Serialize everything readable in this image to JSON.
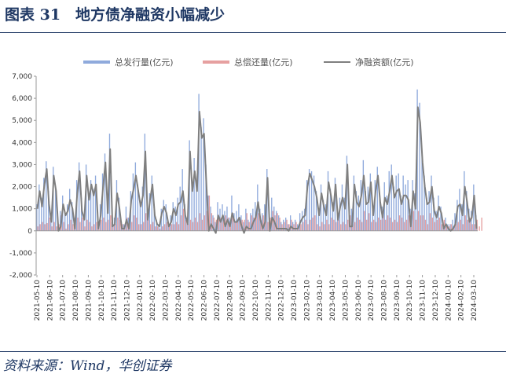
{
  "header": {
    "title": "图表 31　地方债净融资小幅减少"
  },
  "footer": {
    "source": "资料来源：Wind，华创证券"
  },
  "colors": {
    "issuance": "#8faadc",
    "repayment": "#e6a0a0",
    "net": "#7f7f7f",
    "title": "#1f3864"
  },
  "chart_data": {
    "type": "bar",
    "title": "",
    "xlabel": "",
    "ylabel": "",
    "ylim": [
      -2000,
      7000
    ],
    "yticks": [
      "7,000",
      "6,000",
      "5,000",
      "4,000",
      "3,000",
      "2,000",
      "1,000",
      "0",
      "-1,000",
      "-2,000"
    ],
    "ytick_values": [
      7000,
      6000,
      5000,
      4000,
      3000,
      2000,
      1000,
      0,
      -1000,
      -2000
    ],
    "xticks": [
      "2021-05-10",
      "2021-06-10",
      "2021-07-10",
      "2021-08-10",
      "2021-09-10",
      "2021-10-10",
      "2021-11-10",
      "2021-12-10",
      "2022-01-10",
      "2022-02-10",
      "2022-03-10",
      "2022-04-10",
      "2022-05-10",
      "2022-06-10",
      "2022-07-10",
      "2022-08-10",
      "2022-09-10",
      "2022-10-10",
      "2022-11-10",
      "2022-12-10",
      "2023-01-10",
      "2023-02-10",
      "2023-03-10",
      "2023-04-10",
      "2023-05-10",
      "2023-06-10",
      "2023-07-10",
      "2023-08-10",
      "2023-09-10",
      "2023-10-10",
      "2023-11-10",
      "2023-12-10",
      "2024-01-10",
      "2024-02-10",
      "2024-03-10"
    ],
    "legend_position": "top",
    "grid": false,
    "series": [
      {
        "name": "总发行量(亿元)",
        "kind": "bar",
        "values": [
          1200,
          2100,
          1500,
          2400,
          3150,
          1800,
          600,
          2900,
          2000,
          300,
          900,
          1600,
          800,
          1200,
          1900,
          1300,
          600,
          2300,
          3100,
          1500,
          700,
          3000,
          1800,
          2300,
          1900,
          2500,
          300,
          1200,
          2600,
          3500,
          1300,
          4400,
          400,
          600,
          2300,
          1500,
          400,
          300,
          1100,
          600,
          1800,
          2600,
          3100,
          2100,
          1400,
          2000,
          4400,
          1000,
          1700,
          2500,
          900,
          500,
          300,
          1000,
          1400,
          1200,
          400,
          700,
          1300,
          1100,
          1500,
          2000,
          2800,
          1200,
          600,
          4100,
          2200,
          3300,
          2200,
          6200,
          4700,
          5100,
          3000,
          1600,
          1100,
          700,
          400,
          1300,
          1000,
          1200,
          900,
          1100,
          600,
          1600,
          800,
          900,
          1200,
          700,
          400,
          1000,
          500,
          800,
          1000,
          1300,
          2100,
          1000,
          800,
          1200,
          2800,
          600,
          1500,
          1100,
          900,
          700,
          400,
          500,
          600,
          300,
          700,
          400,
          500,
          300,
          800,
          900,
          1000,
          2300,
          2800,
          2700,
          2500,
          1800,
          900,
          2100,
          1400,
          1200,
          2700,
          1900,
          1300,
          2400,
          1000,
          1500,
          2100,
          1500,
          3400,
          1100,
          1000,
          2500,
          1800,
          1600,
          2300,
          3200,
          1800,
          2000,
          2600,
          1200,
          2300,
          2900,
          1700,
          1100,
          2200,
          1600,
          2700,
          3000,
          2000,
          2500,
          2600,
          1600,
          2500,
          2100,
          2300,
          1000,
          2300,
          1700,
          6400,
          5800,
          3500,
          2500,
          1500,
          1800,
          2500,
          1500,
          900,
          1600,
          1100,
          300,
          600,
          300,
          300,
          500,
          800,
          1400,
          1900,
          1200,
          2700,
          1800,
          1000,
          900,
          2100,
          700
        ]
      },
      {
        "name": "总偿还量(亿元)",
        "kind": "bar",
        "values": [
          200,
          300,
          400,
          300,
          350,
          600,
          200,
          400,
          200,
          300,
          700,
          400,
          100,
          300,
          500,
          300,
          500,
          600,
          400,
          600,
          200,
          500,
          400,
          200,
          300,
          400,
          200,
          500,
          600,
          400,
          500,
          700,
          200,
          300,
          600,
          500,
          300,
          200,
          600,
          500,
          400,
          700,
          600,
          300,
          300,
          400,
          800,
          500,
          300,
          400,
          200,
          200,
          100,
          200,
          300,
          400,
          200,
          300,
          300,
          400,
          300,
          700,
          1000,
          500,
          300,
          500,
          400,
          600,
          400,
          800,
          500,
          700,
          900,
          1600,
          800,
          600,
          500,
          600,
          600,
          500,
          700,
          600,
          400,
          800,
          400,
          500,
          600,
          500,
          500,
          800,
          400,
          700,
          600,
          700,
          800,
          500,
          700,
          800,
          400,
          600,
          900,
          700,
          800,
          600,
          300,
          400,
          500,
          300,
          500,
          300,
          400,
          200,
          300,
          400,
          500,
          300,
          500,
          600,
          700,
          300,
          200,
          400,
          300,
          500,
          300,
          600,
          500,
          400,
          500,
          300,
          400,
          300,
          500,
          700,
          300,
          400,
          600,
          500,
          400,
          900,
          500,
          800,
          400,
          500,
          400,
          600,
          500,
          700,
          500,
          700,
          600,
          400,
          500,
          400,
          700,
          600,
          400,
          500,
          700,
          400,
          900,
          500,
          900,
          700,
          700,
          500,
          300,
          800,
          600,
          400,
          500,
          600,
          300,
          500,
          300,
          200,
          300,
          200,
          300,
          400,
          500,
          300,
          700,
          500,
          600,
          300,
          300,
          500,
          200,
          600
        ]
      },
      {
        "name": "净融资额(亿元)",
        "kind": "line",
        "values": [
          1000,
          1800,
          1100,
          2100,
          2800,
          1200,
          400,
          2500,
          1800,
          0,
          200,
          1200,
          700,
          900,
          1400,
          1000,
          100,
          1700,
          2700,
          900,
          500,
          2500,
          1400,
          2100,
          1600,
          2100,
          100,
          700,
          2000,
          3100,
          800,
          3700,
          200,
          300,
          1700,
          1000,
          100,
          100,
          500,
          100,
          1400,
          1900,
          2500,
          1800,
          1100,
          1600,
          3600,
          500,
          1400,
          2100,
          700,
          300,
          200,
          800,
          1100,
          800,
          200,
          400,
          1000,
          700,
          1200,
          1300,
          1800,
          700,
          300,
          3600,
          1800,
          2700,
          1800,
          5400,
          4200,
          4400,
          2100,
          0,
          300,
          100,
          -100,
          700,
          400,
          700,
          200,
          500,
          200,
          800,
          400,
          400,
          600,
          200,
          -100,
          200,
          100,
          100,
          400,
          600,
          1300,
          500,
          100,
          400,
          2400,
          0,
          600,
          400,
          100,
          100,
          100,
          100,
          100,
          0,
          200,
          100,
          100,
          100,
          400,
          600,
          700,
          2000,
          2600,
          2300,
          2000,
          1500,
          700,
          1700,
          1100,
          700,
          2200,
          1600,
          900,
          2100,
          500,
          1100,
          1500,
          1000,
          3000,
          200,
          200,
          2100,
          1300,
          1100,
          1600,
          2500,
          1200,
          1300,
          2200,
          700,
          1800,
          2500,
          1300,
          600,
          1500,
          1200,
          1800,
          2500,
          1500,
          1800,
          1900,
          1200,
          1600,
          1600,
          1400,
          200,
          1800,
          1000,
          5600,
          4900,
          3100,
          2000,
          1200,
          1300,
          2000,
          900,
          600,
          1100,
          800,
          100,
          300,
          100,
          0,
          100,
          300,
          1100,
          1200,
          700,
          2000,
          1300,
          400,
          600,
          1600,
          100
        ]
      }
    ]
  }
}
